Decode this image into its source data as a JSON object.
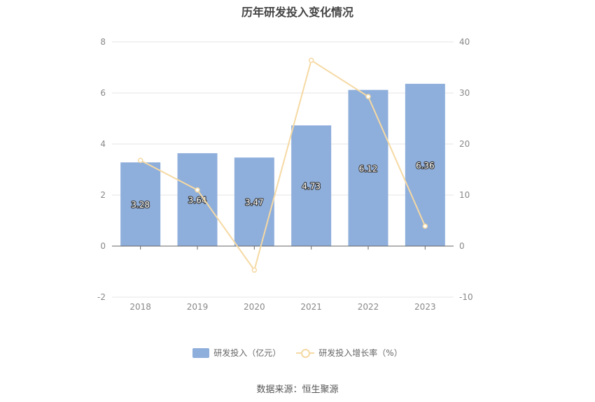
{
  "chart_data": {
    "type": "bar",
    "title": "历年研发投入变化情况",
    "categories": [
      "2018",
      "2019",
      "2020",
      "2021",
      "2022",
      "2023"
    ],
    "series": [
      {
        "name": "研发投入（亿元）",
        "type": "bar",
        "axis": "left",
        "color": "#8eaedb",
        "values": [
          3.28,
          3.64,
          3.47,
          4.73,
          6.12,
          6.36
        ],
        "labels": [
          "3.28",
          "3.64",
          "3.47",
          "4.73",
          "6.12",
          "6.36"
        ]
      },
      {
        "name": "研发投入增长率（%）",
        "type": "line",
        "axis": "right",
        "color": "#f5d9a3",
        "values": [
          16.8,
          11.0,
          -4.7,
          36.4,
          29.3,
          3.9
        ]
      }
    ],
    "yleft": {
      "min": -2,
      "max": 8,
      "ticks": [
        "-2",
        "0",
        "2",
        "4",
        "6",
        "8"
      ]
    },
    "yright": {
      "min": -10,
      "max": 40,
      "ticks": [
        "-10",
        "0",
        "10",
        "20",
        "30",
        "40"
      ]
    },
    "grid": true,
    "legend": "bottom-center"
  },
  "source": "数据来源：恒生聚源"
}
